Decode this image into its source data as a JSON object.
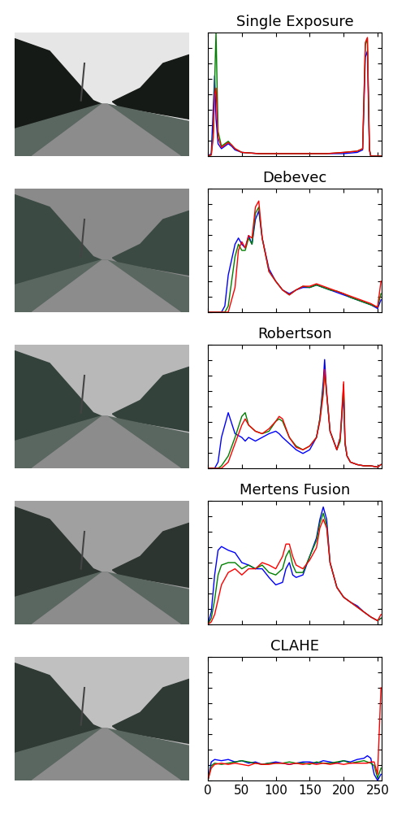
{
  "chart_data": [
    {
      "type": "line",
      "title": "Single Exposure",
      "x": [
        0,
        5,
        8,
        10,
        12,
        15,
        20,
        25,
        30,
        35,
        40,
        50,
        75,
        100,
        125,
        150,
        175,
        200,
        220,
        228,
        232,
        235,
        238,
        240,
        250,
        255
      ],
      "series": [
        {
          "color": "#0000ff",
          "values": [
            0,
            2,
            40,
            65,
            30,
            10,
            6,
            8,
            10,
            8,
            5,
            3,
            2,
            2,
            2,
            2,
            2,
            2,
            3,
            5,
            80,
            85,
            5,
            0,
            0,
            0
          ]
        },
        {
          "color": "#008000",
          "values": [
            0,
            1,
            20,
            60,
            100,
            20,
            8,
            10,
            12,
            9,
            6,
            3,
            2,
            2,
            2,
            2,
            2,
            3,
            4,
            6,
            90,
            95,
            6,
            0,
            0,
            0
          ]
        },
        {
          "color": "#ff0000",
          "values": [
            0,
            1,
            15,
            50,
            55,
            15,
            7,
            9,
            11,
            9,
            6,
            3,
            2,
            2,
            2,
            2,
            2,
            3,
            4,
            6,
            92,
            96,
            5,
            0,
            0,
            0
          ]
        }
      ],
      "xlim": [
        0,
        256
      ],
      "xticks": [
        0,
        50,
        100,
        150,
        200,
        250
      ],
      "ylim": [
        0,
        100
      ],
      "yticks": [
        0,
        12.5,
        25,
        37.5,
        50,
        62.5,
        75,
        87.5,
        100
      ],
      "tick_labels": false
    },
    {
      "type": "line",
      "title": "Debevec",
      "x": [
        0,
        10,
        20,
        25,
        30,
        40,
        45,
        50,
        55,
        60,
        65,
        70,
        75,
        80,
        90,
        100,
        110,
        120,
        130,
        140,
        150,
        160,
        170,
        180,
        190,
        200,
        210,
        220,
        230,
        240,
        250,
        255
      ],
      "series": [
        {
          "color": "#0000ff",
          "values": [
            0,
            0,
            0,
            5,
            30,
            55,
            60,
            55,
            52,
            62,
            55,
            75,
            82,
            60,
            35,
            25,
            18,
            15,
            18,
            20,
            20,
            22,
            20,
            18,
            16,
            14,
            12,
            10,
            8,
            6,
            3,
            10
          ]
        },
        {
          "color": "#008000",
          "values": [
            0,
            0,
            0,
            0,
            5,
            45,
            55,
            50,
            50,
            60,
            55,
            80,
            85,
            60,
            33,
            25,
            18,
            14,
            18,
            21,
            20,
            22,
            20,
            18,
            17,
            15,
            12,
            10,
            8,
            6,
            4,
            15
          ]
        },
        {
          "color": "#ff0000",
          "values": [
            0,
            0,
            0,
            0,
            0,
            20,
            50,
            57,
            52,
            62,
            60,
            85,
            90,
            60,
            33,
            25,
            18,
            14,
            18,
            21,
            21,
            23,
            21,
            19,
            17,
            15,
            13,
            11,
            9,
            7,
            4,
            25
          ]
        }
      ],
      "xlim": [
        0,
        256
      ],
      "xticks": [
        0,
        50,
        100,
        150,
        200,
        250
      ],
      "ylim": [
        0,
        100
      ],
      "yticks": [
        0,
        12.5,
        25,
        37.5,
        50,
        62.5,
        75,
        87.5,
        100
      ],
      "tick_labels": false
    },
    {
      "type": "line",
      "title": "Robertson",
      "x": [
        0,
        10,
        15,
        20,
        30,
        40,
        50,
        55,
        60,
        70,
        80,
        90,
        100,
        105,
        110,
        120,
        130,
        140,
        150,
        160,
        165,
        170,
        172,
        175,
        180,
        190,
        195,
        200,
        202,
        205,
        210,
        220,
        230,
        240,
        250,
        255
      ],
      "series": [
        {
          "color": "#0000ff",
          "values": [
            0,
            0,
            5,
            25,
            45,
            28,
            25,
            22,
            25,
            22,
            25,
            28,
            30,
            28,
            25,
            20,
            15,
            12,
            15,
            25,
            40,
            70,
            88,
            60,
            30,
            15,
            25,
            60,
            20,
            10,
            5,
            3,
            2,
            2,
            1,
            3
          ]
        },
        {
          "color": "#008000",
          "values": [
            0,
            0,
            0,
            2,
            10,
            25,
            42,
            45,
            35,
            30,
            28,
            30,
            38,
            40,
            38,
            25,
            18,
            15,
            18,
            25,
            40,
            65,
            78,
            60,
            30,
            15,
            22,
            68,
            20,
            10,
            5,
            3,
            2,
            2,
            1,
            3
          ]
        },
        {
          "color": "#ff0000",
          "values": [
            0,
            0,
            0,
            0,
            5,
            20,
            35,
            40,
            35,
            30,
            28,
            32,
            38,
            42,
            40,
            25,
            17,
            15,
            18,
            25,
            38,
            60,
            80,
            62,
            30,
            15,
            25,
            70,
            22,
            10,
            5,
            3,
            2,
            2,
            1,
            3
          ]
        }
      ],
      "xlim": [
        0,
        256
      ],
      "xticks": [
        0,
        50,
        100,
        150,
        200,
        250
      ],
      "ylim": [
        0,
        100
      ],
      "yticks": [
        0,
        12.5,
        25,
        37.5,
        50,
        62.5,
        75,
        87.5,
        100
      ],
      "tick_labels": false
    },
    {
      "type": "line",
      "title": "Mertens Fusion",
      "x": [
        0,
        5,
        10,
        15,
        20,
        30,
        40,
        50,
        60,
        70,
        80,
        90,
        100,
        110,
        115,
        120,
        125,
        130,
        140,
        150,
        160,
        165,
        170,
        175,
        180,
        190,
        200,
        210,
        220,
        230,
        240,
        250,
        255
      ],
      "series": [
        {
          "color": "#0000ff",
          "values": [
            0,
            10,
            40,
            60,
            63,
            60,
            58,
            50,
            48,
            45,
            45,
            38,
            32,
            34,
            45,
            50,
            40,
            38,
            40,
            55,
            70,
            85,
            95,
            85,
            50,
            30,
            22,
            18,
            15,
            10,
            6,
            3,
            5
          ]
        },
        {
          "color": "#008000",
          "values": [
            0,
            5,
            20,
            40,
            48,
            50,
            50,
            45,
            48,
            45,
            48,
            42,
            40,
            45,
            55,
            60,
            48,
            42,
            42,
            55,
            68,
            82,
            90,
            80,
            50,
            30,
            22,
            18,
            14,
            10,
            6,
            3,
            5
          ]
        },
        {
          "color": "#ff0000",
          "values": [
            0,
            2,
            8,
            20,
            32,
            42,
            45,
            40,
            45,
            45,
            50,
            48,
            45,
            55,
            65,
            65,
            55,
            48,
            45,
            52,
            62,
            78,
            85,
            78,
            50,
            30,
            22,
            18,
            14,
            10,
            6,
            3,
            8
          ]
        }
      ],
      "xlim": [
        0,
        256
      ],
      "xticks": [
        0,
        50,
        100,
        150,
        200,
        250
      ],
      "ylim": [
        0,
        100
      ],
      "yticks": [
        0,
        12.5,
        25,
        37.5,
        50,
        62.5,
        75,
        87.5,
        100
      ],
      "tick_labels": false
    },
    {
      "type": "line",
      "title": "CLAHE",
      "x": [
        0,
        5,
        10,
        20,
        30,
        40,
        50,
        60,
        70,
        80,
        90,
        100,
        110,
        120,
        130,
        140,
        150,
        160,
        170,
        180,
        190,
        200,
        210,
        220,
        230,
        235,
        240,
        245,
        250,
        255
      ],
      "series": [
        {
          "color": "#0000ff",
          "values": [
            0,
            15,
            17,
            16,
            17,
            15,
            16,
            14,
            15,
            13,
            14,
            15,
            14,
            13,
            14,
            15,
            15,
            14,
            16,
            15,
            14,
            16,
            15,
            17,
            18,
            20,
            18,
            5,
            0,
            5
          ]
        },
        {
          "color": "#008000",
          "values": [
            0,
            12,
            14,
            13,
            14,
            15,
            16,
            15,
            14,
            13,
            14,
            14,
            14,
            15,
            14,
            14,
            13,
            15,
            14,
            14,
            15,
            16,
            14,
            15,
            16,
            15,
            14,
            12,
            2,
            10
          ]
        },
        {
          "color": "#ff0000",
          "values": [
            0,
            10,
            13,
            14,
            13,
            14,
            13,
            12,
            14,
            13,
            13,
            14,
            14,
            13,
            14,
            13,
            14,
            13,
            14,
            13,
            14,
            13,
            14,
            14,
            14,
            14,
            15,
            15,
            5,
            75
          ]
        }
      ],
      "xlim": [
        0,
        256
      ],
      "xticks": [
        0,
        50,
        100,
        150,
        200,
        250
      ],
      "ylim": [
        0,
        100
      ],
      "yticks": [
        0,
        12.5,
        25,
        37.5,
        50,
        62.5,
        75,
        87.5,
        100
      ],
      "tick_labels": "x"
    }
  ]
}
